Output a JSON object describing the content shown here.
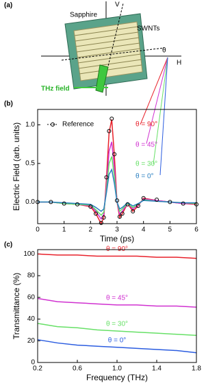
{
  "panel_a": {
    "label": "(a)",
    "sapphire": "Sapphire",
    "v": "V",
    "swnts": "SWNTs",
    "theta": "θ",
    "h": "H",
    "thz": "THz field"
  },
  "chart_data": [
    {
      "type": "line",
      "panel_label": "(b)",
      "x_label": "Time (ps)",
      "y_label": "Electric Field (arb. units)",
      "x": [
        0,
        0.5,
        1,
        1.5,
        2,
        2.2,
        2.4,
        2.5,
        2.6,
        2.7,
        2.8,
        2.9,
        3.0,
        3.1,
        3.2,
        3.4,
        3.6,
        3.8,
        4,
        4.5,
        5,
        5.5,
        6
      ],
      "xlim": [
        0,
        6
      ],
      "xticks": [
        0,
        1,
        2,
        3,
        4,
        5,
        6
      ],
      "ylim": [
        -0.28,
        1.2
      ],
      "yticks": [
        {
          "value": 0,
          "label": "0.0"
        },
        {
          "value": 0.5,
          "label": "0.5"
        },
        {
          "value": 1,
          "label": "1.0"
        }
      ],
      "reference": {
        "name": "Reference",
        "color": "#000000",
        "values": [
          0,
          0,
          -0.02,
          -0.03,
          -0.06,
          -0.15,
          -0.27,
          -0.2,
          0.32,
          0.92,
          1.08,
          0.62,
          0.02,
          -0.19,
          -0.15,
          -0.03,
          -0.12,
          -0.05,
          0.05,
          0.03,
          0,
          -0.02,
          -0.03
        ]
      },
      "series": [
        {
          "name": "θ = 90°",
          "color": "#e8202a",
          "values": [
            0,
            0,
            -0.02,
            -0.03,
            -0.06,
            -0.15,
            -0.28,
            -0.2,
            0.3,
            0.9,
            1.07,
            0.6,
            0.0,
            -0.2,
            -0.15,
            -0.02,
            -0.12,
            -0.05,
            0.05,
            0.02,
            0,
            -0.02,
            -0.03
          ]
        },
        {
          "name": "θ = 45°",
          "color": "#d030d0",
          "values": [
            0,
            0,
            -0.02,
            -0.03,
            -0.05,
            -0.12,
            -0.22,
            -0.16,
            0.22,
            0.66,
            0.78,
            0.44,
            0.0,
            -0.16,
            -0.12,
            -0.02,
            -0.09,
            -0.04,
            0.04,
            0.02,
            0,
            -0.02,
            -0.02
          ]
        },
        {
          "name": "θ = 30°",
          "color": "#66e066",
          "values": [
            0,
            0,
            -0.02,
            -0.03,
            -0.04,
            -0.1,
            -0.17,
            -0.13,
            0.16,
            0.5,
            0.59,
            0.33,
            0.0,
            -0.12,
            -0.09,
            -0.02,
            -0.07,
            -0.03,
            0.03,
            0.01,
            0,
            -0.01,
            -0.02
          ]
        },
        {
          "name": "θ = 0°",
          "color": "#2a7fc0",
          "values": [
            0,
            0,
            -0.01,
            -0.02,
            -0.03,
            -0.07,
            -0.12,
            -0.09,
            0.12,
            0.36,
            0.42,
            0.24,
            0.0,
            -0.09,
            -0.07,
            -0.01,
            -0.05,
            -0.02,
            0.02,
            0.01,
            0,
            -0.01,
            -0.01
          ]
        }
      ]
    },
    {
      "type": "line",
      "panel_label": "(c)",
      "x_label": "Frequency (THz)",
      "y_label": "Transmittance (%)",
      "x": [
        0.2,
        0.4,
        0.6,
        0.8,
        1.0,
        1.2,
        1.4,
        1.6,
        1.8
      ],
      "xlim": [
        0.2,
        1.8
      ],
      "xticks": [
        0.2,
        0.6,
        {
          "value": 1,
          "label": "1.0"
        },
        1.4,
        1.8
      ],
      "ylim": [
        0,
        104
      ],
      "yticks": [
        0,
        20,
        40,
        60,
        80,
        100
      ],
      "series": [
        {
          "name": "θ = 90°",
          "color": "#e8202a",
          "values": [
            100,
            99,
            99,
            98,
            98,
            98,
            97,
            97,
            96
          ]
        },
        {
          "name": "θ = 45°",
          "color": "#d030d0",
          "values": [
            59,
            56,
            55,
            54,
            53,
            53,
            52,
            52,
            51
          ]
        },
        {
          "name": "θ = 30°",
          "color": "#66e066",
          "values": [
            36,
            33,
            32,
            30,
            29,
            28,
            27,
            26,
            25
          ]
        },
        {
          "name": "θ = 0°",
          "color": "#2a5ce0",
          "values": [
            21,
            18,
            16,
            15,
            14,
            13,
            12,
            11,
            9
          ]
        }
      ]
    }
  ]
}
